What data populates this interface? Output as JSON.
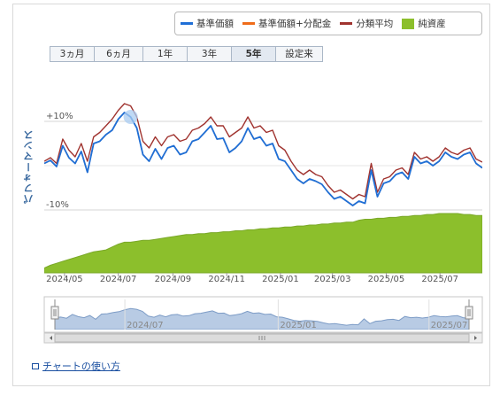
{
  "legend": [
    {
      "label": "基準価額",
      "color": "#1f6fd6",
      "kind": "line"
    },
    {
      "label": "基準価額+分配金",
      "color": "#ef6c1a",
      "kind": "line"
    },
    {
      "label": "分類平均",
      "color": "#a0332f",
      "kind": "line"
    },
    {
      "label": "純資産",
      "color": "#8cbf2c",
      "kind": "box"
    }
  ],
  "range_tabs": [
    {
      "label": "3ヵ月",
      "active": false
    },
    {
      "label": "6ヵ月",
      "active": false
    },
    {
      "label": "1年",
      "active": false
    },
    {
      "label": "3年",
      "active": false
    },
    {
      "label": "5年",
      "active": true
    },
    {
      "label": "設定来",
      "active": false
    }
  ],
  "help_link": "チャートの使い方",
  "chart_data": {
    "type": "line",
    "ylabel": "パフォーマンス",
    "y_ticks": [
      "+10%",
      "-10%"
    ],
    "ylim": [
      -15,
      18
    ],
    "x_ticks": [
      "2024/05",
      "2024/07",
      "2024/09",
      "2024/11",
      "2025/01",
      "2025/03",
      "2025/05",
      "2025/07"
    ],
    "navigator_ticks": [
      "2024/07",
      "2025/01",
      "2025/07"
    ],
    "x": [
      "2024-04-08",
      "2024-04-15",
      "2024-04-22",
      "2024-04-29",
      "2024-05-06",
      "2024-05-13",
      "2024-05-20",
      "2024-05-27",
      "2024-06-03",
      "2024-06-10",
      "2024-06-17",
      "2024-06-24",
      "2024-07-01",
      "2024-07-08",
      "2024-07-15",
      "2024-07-22",
      "2024-07-29",
      "2024-08-05",
      "2024-08-12",
      "2024-08-19",
      "2024-08-26",
      "2024-09-02",
      "2024-09-09",
      "2024-09-16",
      "2024-09-23",
      "2024-09-30",
      "2024-10-07",
      "2024-10-14",
      "2024-10-21",
      "2024-10-28",
      "2024-11-04",
      "2024-11-11",
      "2024-11-18",
      "2024-11-25",
      "2024-12-02",
      "2024-12-09",
      "2024-12-16",
      "2024-12-23",
      "2024-12-30",
      "2025-01-06",
      "2025-01-13",
      "2025-01-20",
      "2025-01-27",
      "2025-02-03",
      "2025-02-10",
      "2025-02-17",
      "2025-02-24",
      "2025-03-03",
      "2025-03-10",
      "2025-03-17",
      "2025-03-24",
      "2025-03-31",
      "2025-04-07",
      "2025-04-14",
      "2025-04-21",
      "2025-04-28",
      "2025-05-05",
      "2025-05-12",
      "2025-05-19",
      "2025-05-26",
      "2025-06-02",
      "2025-06-09",
      "2025-06-16",
      "2025-06-23",
      "2025-06-30",
      "2025-07-07",
      "2025-07-14",
      "2025-07-21",
      "2025-07-28",
      "2025-08-04",
      "2025-08-11",
      "2025-08-18"
    ],
    "series": [
      {
        "name": "基準価額",
        "color": "#1f6fd6",
        "values": [
          0.5,
          1.2,
          -0.2,
          4.5,
          1.8,
          0.5,
          3.2,
          -1.5,
          5.0,
          5.5,
          7.0,
          8.0,
          10.5,
          12.0,
          11.0,
          8.5,
          2.5,
          1.0,
          3.8,
          1.5,
          4.0,
          4.5,
          2.5,
          3.0,
          5.5,
          6.0,
          7.5,
          9.0,
          6.0,
          6.2,
          3.0,
          4.0,
          5.5,
          8.5,
          6.0,
          6.5,
          4.5,
          5.0,
          1.5,
          1.0,
          -1.0,
          -3.0,
          -4.0,
          -3.0,
          -3.5,
          -4.2,
          -6.0,
          -7.5,
          -7.0,
          -8.0,
          -9.0,
          -8.0,
          -8.5,
          -1.0,
          -7.0,
          -4.0,
          -3.5,
          -2.0,
          -1.5,
          -3.0,
          2.0,
          0.5,
          1.0,
          0.0,
          1.0,
          3.0,
          2.0,
          1.5,
          2.5,
          3.0,
          0.5,
          -0.5
        ]
      },
      {
        "name": "基準価額+分配金",
        "color": "#ef6c1a",
        "values": [
          0.5,
          1.2,
          -0.2,
          4.5,
          1.8,
          0.5,
          3.2,
          -1.5,
          5.0,
          5.5,
          7.0,
          8.0,
          10.5,
          12.0,
          11.0,
          8.5,
          2.5,
          1.0,
          3.8,
          1.5,
          4.0,
          4.5,
          2.5,
          3.0,
          5.5,
          6.0,
          7.5,
          9.0,
          6.0,
          6.2,
          3.0,
          4.0,
          5.5,
          8.5,
          6.0,
          6.5,
          4.5,
          5.0,
          1.5,
          1.0,
          -1.0,
          -3.0,
          -4.0,
          -3.0,
          -3.5,
          -4.2,
          -6.0,
          -7.5,
          -7.0,
          -8.0,
          -9.0,
          -8.0,
          -8.5,
          -1.0,
          -7.0,
          -4.0,
          -3.5,
          -2.0,
          -1.5,
          -3.0,
          2.0,
          0.5,
          1.0,
          0.0,
          1.0,
          3.0,
          2.0,
          1.5,
          2.5,
          3.0,
          0.5,
          -0.5
        ]
      },
      {
        "name": "分類平均",
        "color": "#a0332f",
        "values": [
          1.0,
          1.8,
          0.5,
          6.0,
          3.5,
          2.0,
          5.0,
          1.0,
          6.5,
          7.5,
          9.0,
          10.5,
          12.5,
          14.0,
          13.5,
          11.0,
          5.5,
          4.0,
          6.5,
          4.5,
          6.5,
          7.0,
          5.5,
          6.0,
          8.0,
          8.5,
          9.5,
          11.0,
          9.0,
          9.0,
          6.5,
          7.5,
          8.5,
          11.0,
          8.5,
          9.0,
          7.5,
          8.0,
          4.5,
          3.5,
          1.0,
          -1.0,
          -2.0,
          -1.0,
          -2.0,
          -2.5,
          -4.5,
          -6.0,
          -5.5,
          -6.5,
          -7.5,
          -6.5,
          -7.0,
          0.5,
          -6.0,
          -3.0,
          -2.5,
          -1.0,
          -0.5,
          -2.0,
          3.0,
          1.5,
          2.0,
          1.0,
          2.0,
          4.0,
          3.0,
          2.5,
          3.5,
          4.0,
          1.5,
          0.8
        ]
      }
    ],
    "net_assets": {
      "name": "純資産",
      "color": "#8cbf2c",
      "values": [
        5,
        8,
        10,
        12,
        14,
        16,
        18,
        20,
        22,
        23,
        24,
        27,
        30,
        32,
        32,
        33,
        34,
        34,
        35,
        36,
        37,
        38,
        39,
        40,
        40,
        41,
        41,
        42,
        42,
        43,
        43,
        44,
        44,
        45,
        45,
        46,
        46,
        47,
        47,
        48,
        48,
        49,
        49,
        50,
        50,
        51,
        51,
        52,
        52,
        53,
        53,
        55,
        56,
        56,
        57,
        57,
        58,
        58,
        59,
        59,
        60,
        60,
        61,
        61,
        62,
        62,
        62,
        62,
        61,
        61,
        60,
        60
      ]
    }
  }
}
